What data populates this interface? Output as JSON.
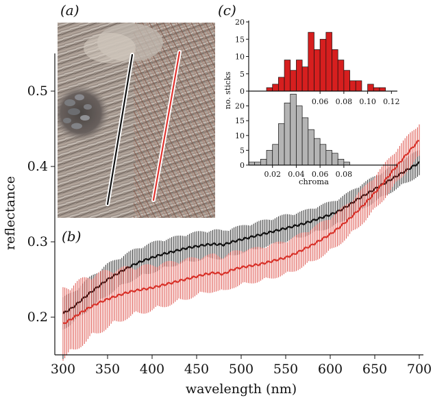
{
  "figure": {
    "panel_labels": {
      "a": "(a)",
      "b": "(b)",
      "c": "(c)"
    },
    "photo_icon": "nest-photo-image"
  },
  "colors": {
    "red_series": "#d8322a",
    "black_series": "#111111",
    "red_bars": "#d61f1f",
    "grey_bars": "#b4b4b4"
  },
  "chart_data": [
    {
      "id": "b",
      "type": "line",
      "xlabel": "wavelength (nm)",
      "ylabel": "reflectance",
      "xlim": [
        300,
        700
      ],
      "ylim": [
        0.15,
        0.55
      ],
      "xticks": [
        300,
        350,
        400,
        450,
        500,
        550,
        600,
        650,
        700
      ],
      "yticks": [
        0.2,
        0.3,
        0.4,
        0.5
      ],
      "ytick_labels": [
        "0.2",
        "0.3",
        "0.4",
        "0.5"
      ],
      "error_bars": true,
      "series": [
        {
          "color": "#111111",
          "x": [
            300,
            310,
            320,
            330,
            340,
            350,
            360,
            370,
            380,
            390,
            400,
            410,
            420,
            430,
            440,
            450,
            460,
            470,
            480,
            490,
            500,
            510,
            520,
            530,
            540,
            550,
            560,
            570,
            580,
            590,
            600,
            610,
            620,
            630,
            640,
            650,
            660,
            670,
            680,
            690,
            700
          ],
          "y": [
            0.205,
            0.212,
            0.222,
            0.232,
            0.241,
            0.25,
            0.257,
            0.264,
            0.27,
            0.275,
            0.279,
            0.283,
            0.286,
            0.289,
            0.292,
            0.294,
            0.296,
            0.297,
            0.296,
            0.3,
            0.303,
            0.306,
            0.309,
            0.312,
            0.315,
            0.318,
            0.321,
            0.324,
            0.328,
            0.332,
            0.336,
            0.341,
            0.348,
            0.356,
            0.363,
            0.37,
            0.377,
            0.384,
            0.391,
            0.398,
            0.405
          ],
          "err": [
            0.022,
            0.022,
            0.022,
            0.022,
            0.022,
            0.022,
            0.021,
            0.021,
            0.021,
            0.021,
            0.021,
            0.021,
            0.02,
            0.02,
            0.02,
            0.02,
            0.02,
            0.02,
            0.02,
            0.02,
            0.019,
            0.019,
            0.019,
            0.019,
            0.019,
            0.019,
            0.018,
            0.018,
            0.018,
            0.018,
            0.018,
            0.018,
            0.018,
            0.018,
            0.018,
            0.018,
            0.018,
            0.018,
            0.018,
            0.018,
            0.018
          ]
        },
        {
          "color": "#d8322a",
          "x": [
            300,
            310,
            320,
            330,
            340,
            350,
            360,
            370,
            380,
            390,
            400,
            410,
            420,
            430,
            440,
            450,
            460,
            470,
            480,
            490,
            500,
            510,
            520,
            530,
            540,
            550,
            560,
            570,
            580,
            590,
            600,
            610,
            620,
            630,
            640,
            650,
            660,
            670,
            680,
            690,
            700
          ],
          "y": [
            0.191,
            0.198,
            0.206,
            0.213,
            0.219,
            0.224,
            0.228,
            0.232,
            0.235,
            0.237,
            0.239,
            0.242,
            0.245,
            0.248,
            0.251,
            0.254,
            0.257,
            0.259,
            0.257,
            0.263,
            0.266,
            0.268,
            0.27,
            0.273,
            0.276,
            0.279,
            0.284,
            0.29,
            0.296,
            0.303,
            0.31,
            0.319,
            0.329,
            0.34,
            0.352,
            0.365,
            0.379,
            0.394,
            0.408,
            0.422,
            0.435
          ],
          "err": [
            0.05,
            0.048,
            0.046,
            0.044,
            0.042,
            0.04,
            0.038,
            0.036,
            0.034,
            0.033,
            0.032,
            0.031,
            0.03,
            0.029,
            0.028,
            0.027,
            0.026,
            0.026,
            0.025,
            0.025,
            0.025,
            0.024,
            0.024,
            0.024,
            0.024,
            0.024,
            0.024,
            0.024,
            0.024,
            0.024,
            0.024,
            0.024,
            0.024,
            0.024,
            0.024,
            0.024,
            0.024,
            0.024,
            0.024,
            0.024,
            0.024
          ]
        }
      ]
    },
    {
      "id": "c-top",
      "type": "bar",
      "ylabel": "no. sticks",
      "xlim": [
        0,
        0.125
      ],
      "ylim": [
        0,
        20
      ],
      "yticks": [
        0,
        5,
        10,
        15,
        20
      ],
      "xticks": [
        0.06,
        0.08,
        0.1,
        0.12
      ],
      "xtick_labels": [
        "0.06",
        "0.08",
        "0.10",
        "0.12"
      ],
      "bin_width": 0.005,
      "bin_starts": [
        0.01,
        0.015,
        0.02,
        0.025,
        0.03,
        0.035,
        0.04,
        0.045,
        0.05,
        0.055,
        0.06,
        0.065,
        0.07,
        0.075,
        0.08,
        0.085,
        0.09,
        0.095,
        0.1,
        0.105,
        0.11,
        0.115
      ],
      "values": [
        0,
        1,
        2,
        4,
        9,
        6,
        9,
        7,
        17,
        12,
        15,
        17,
        12,
        9,
        6,
        3,
        3,
        0,
        2,
        1,
        1,
        0
      ],
      "color": "#d61f1f"
    },
    {
      "id": "c-bottom",
      "type": "bar",
      "xlabel": "chroma",
      "xlim": [
        0,
        0.125
      ],
      "ylim": [
        0,
        25
      ],
      "yticks": [
        0,
        5,
        10,
        15,
        20
      ],
      "xticks": [
        0.02,
        0.04,
        0.06,
        0.08
      ],
      "xtick_labels": [
        "0.02",
        "0.04",
        "0.06",
        "0.08"
      ],
      "bin_width": 0.005,
      "bin_starts": [
        0.0,
        0.005,
        0.01,
        0.015,
        0.02,
        0.025,
        0.03,
        0.035,
        0.04,
        0.045,
        0.05,
        0.055,
        0.06,
        0.065,
        0.07,
        0.075,
        0.08,
        0.085
      ],
      "values": [
        1,
        1,
        2,
        5,
        7,
        14,
        21,
        24,
        20,
        16,
        12,
        9,
        7,
        5,
        4,
        2,
        1,
        0
      ],
      "color": "#b4b4b4"
    }
  ]
}
